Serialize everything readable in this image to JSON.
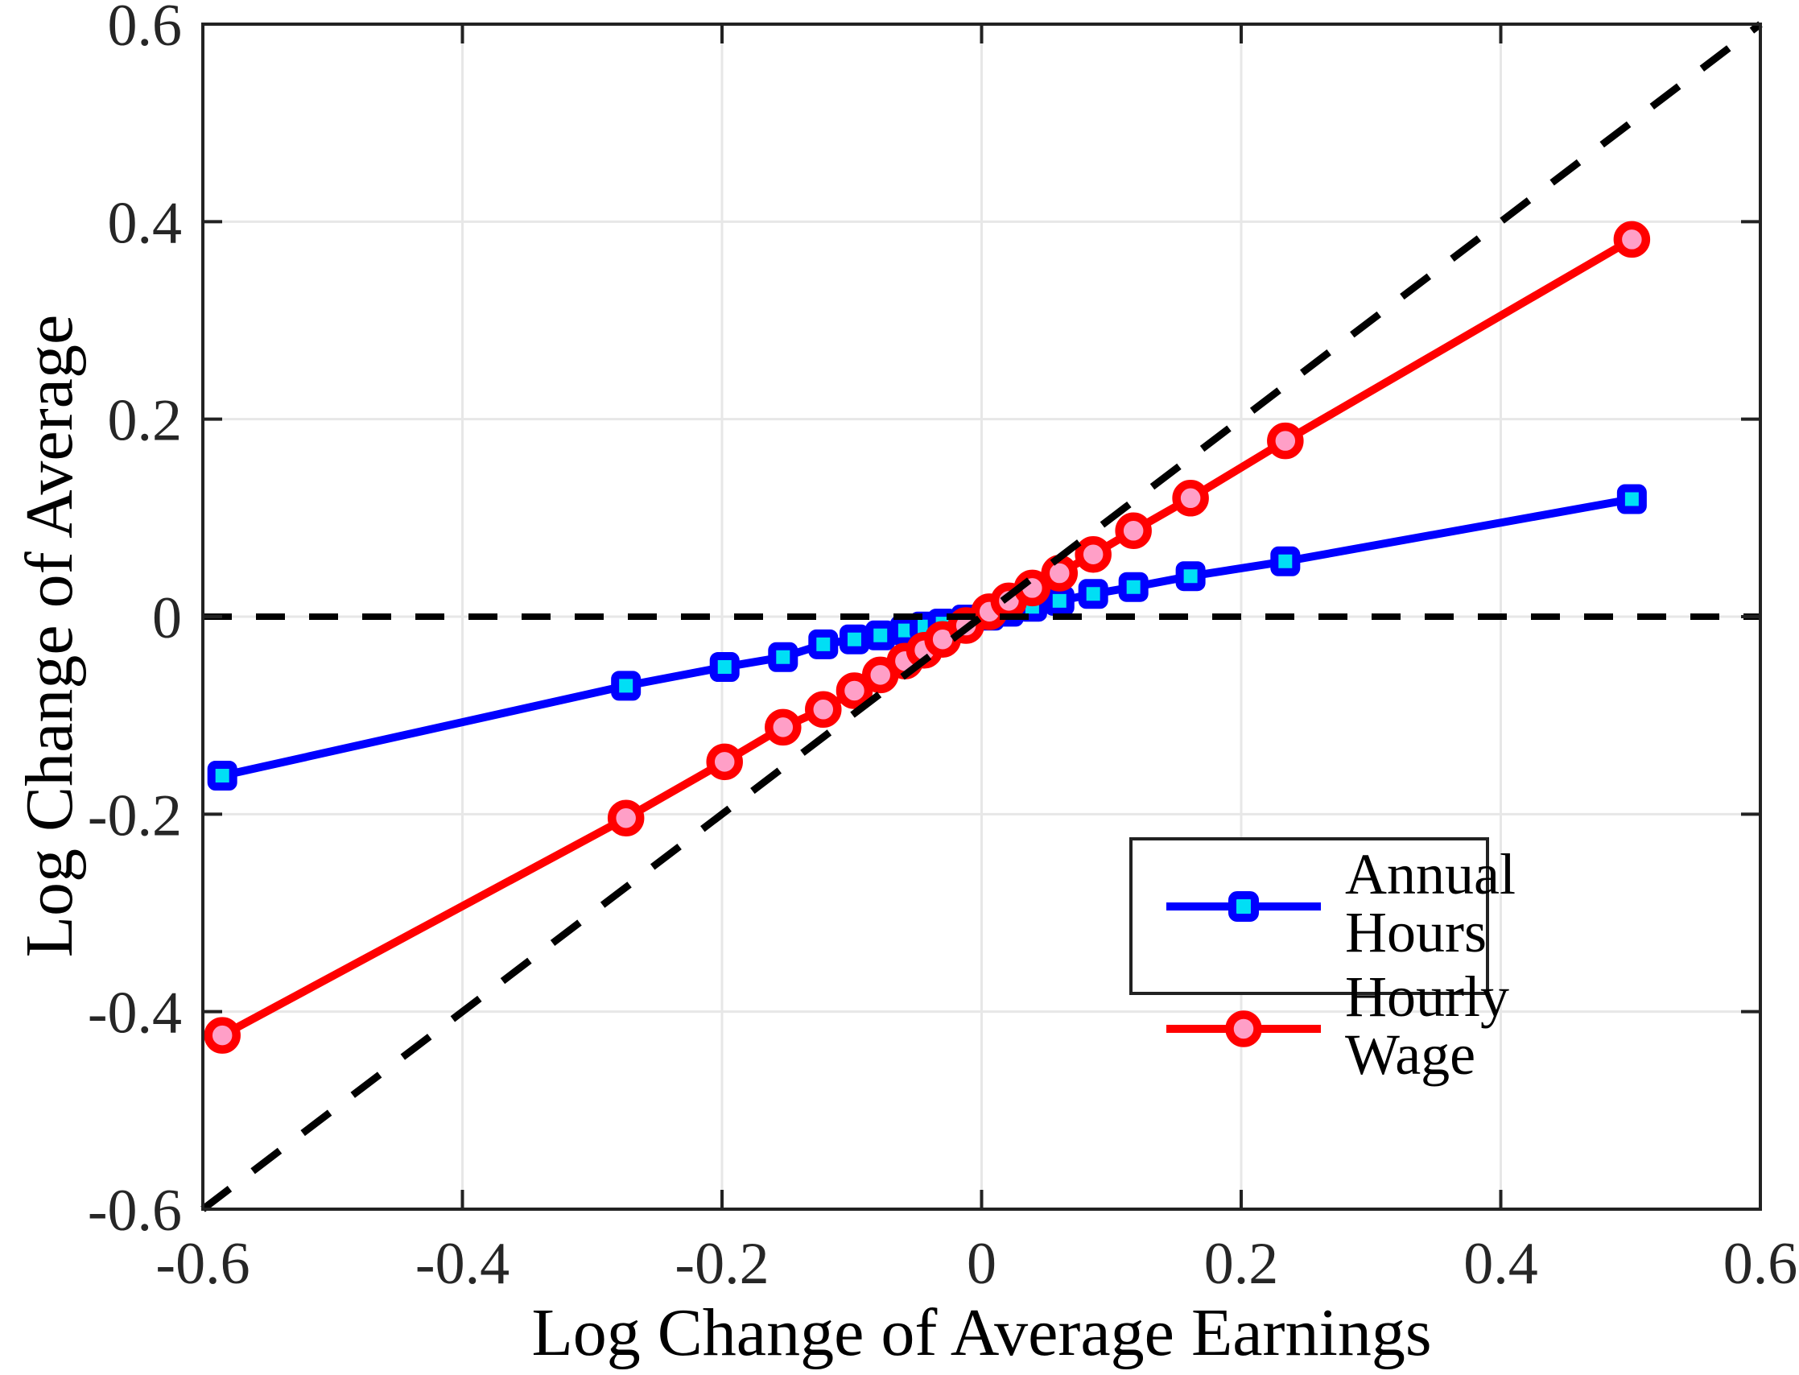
{
  "figure": {
    "background": "#ffffff",
    "axis_color": "#222222",
    "grid_color": "#e7e7e7",
    "text_color": "#262626"
  },
  "chart_data": {
    "type": "line",
    "xlabel": "Log Change of Average Earnings",
    "ylabel": "Log Change of Average",
    "xlim": [
      -0.6,
      0.6
    ],
    "ylim": [
      -0.6,
      0.6
    ],
    "grid": true,
    "x_ticks": [
      -0.6,
      -0.4,
      -0.2,
      0,
      0.2,
      0.4,
      0.6
    ],
    "x_tick_labels": [
      "-0.6",
      "-0.4",
      "-0.2",
      "0",
      "0.2",
      "0.4",
      "0.6"
    ],
    "y_ticks": [
      -0.6,
      -0.4,
      -0.2,
      0,
      0.2,
      0.4,
      0.6
    ],
    "y_tick_labels": [
      "-0.6",
      "-0.4",
      "-0.2",
      "0",
      "0.2",
      "0.4",
      "0.6"
    ],
    "legend_position": "inside-lower-right",
    "x": [
      -0.585,
      -0.274,
      -0.198,
      -0.153,
      -0.122,
      -0.098,
      -0.078,
      -0.059,
      -0.044,
      -0.03,
      -0.012,
      0.006,
      0.021,
      0.039,
      0.06,
      0.086,
      0.117,
      0.161,
      0.234,
      0.501
    ],
    "series": [
      {
        "name": "Annual Hours",
        "marker": "square",
        "line_color": "#0000ff",
        "marker_fill": "#00dff5",
        "values": [
          -0.161,
          -0.07,
          -0.051,
          -0.041,
          -0.028,
          -0.023,
          -0.019,
          -0.014,
          -0.01,
          -0.007,
          -0.003,
          0.001,
          0.005,
          0.01,
          0.016,
          0.023,
          0.03,
          0.041,
          0.056,
          0.119
        ]
      },
      {
        "name": "Hourly Wage",
        "marker": "circle",
        "line_color": "#ff0000",
        "marker_fill": "#ff9fc7",
        "values": [
          -0.424,
          -0.204,
          -0.147,
          -0.112,
          -0.094,
          -0.075,
          -0.059,
          -0.045,
          -0.034,
          -0.023,
          -0.009,
          0.005,
          0.016,
          0.029,
          0.044,
          0.063,
          0.087,
          0.12,
          0.178,
          0.382
        ]
      }
    ],
    "reference_lines": [
      {
        "name": "zero-line",
        "kind": "horizontal",
        "y": 0,
        "style": "dashed",
        "color": "#000000"
      },
      {
        "name": "45-degree-line",
        "kind": "diagonal",
        "from": [
          -0.6,
          -0.6
        ],
        "to": [
          0.6,
          0.6
        ],
        "style": "dashed",
        "color": "#000000"
      }
    ]
  }
}
